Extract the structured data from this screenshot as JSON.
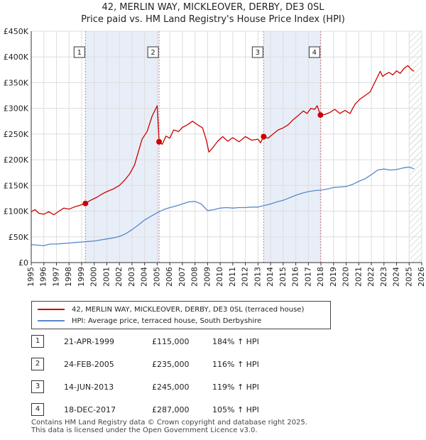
{
  "title_line1": "42, MERLIN WAY, MICKLEOVER, DERBY, DE3 0SL",
  "title_line2": "Price paid vs. HM Land Registry's House Price Index (HPI)",
  "legend": {
    "red_label": "42, MERLIN WAY, MICKLEOVER, DERBY, DE3 0SL (terraced house)",
    "blue_label": "HPI: Average price, terraced house, South Derbyshire"
  },
  "colors": {
    "red": "#cc0000",
    "blue": "#5588cc",
    "shade": "#e8eef8",
    "grid": "#dddddd",
    "vline": "#d08080"
  },
  "sales": [
    {
      "num": "1",
      "date": "21-APR-1999",
      "price": "£115,000",
      "hpi": "184% ↑ HPI"
    },
    {
      "num": "2",
      "date": "24-FEB-2005",
      "price": "£235,000",
      "hpi": "116% ↑ HPI"
    },
    {
      "num": "3",
      "date": "14-JUN-2013",
      "price": "£245,000",
      "hpi": "119% ↑ HPI"
    },
    {
      "num": "4",
      "date": "18-DEC-2017",
      "price": "£287,000",
      "hpi": "105% ↑ HPI"
    }
  ],
  "footer_line1": "Contains HM Land Registry data © Crown copyright and database right 2025.",
  "footer_line2": "This data is licensed under the Open Government Licence v3.0.",
  "chart_data": {
    "type": "line",
    "title": "Price paid vs. HM Land Registry's House Price Index (HPI)",
    "xlim": [
      1995,
      2026
    ],
    "ylim": [
      0,
      450000
    ],
    "x_ticks": [
      1995,
      1996,
      1997,
      1998,
      1999,
      2000,
      2001,
      2002,
      2003,
      2004,
      2005,
      2006,
      2007,
      2008,
      2009,
      2010,
      2011,
      2012,
      2013,
      2014,
      2015,
      2016,
      2017,
      2018,
      2019,
      2020,
      2021,
      2022,
      2023,
      2024,
      2025,
      2026
    ],
    "y_ticks": [
      {
        "value": 0,
        "label": "£0"
      },
      {
        "value": 50000,
        "label": "£50K"
      },
      {
        "value": 100000,
        "label": "£100K"
      },
      {
        "value": 150000,
        "label": "£150K"
      },
      {
        "value": 200000,
        "label": "£200K"
      },
      {
        "value": 250000,
        "label": "£250K"
      },
      {
        "value": 300000,
        "label": "£300K"
      },
      {
        "value": 350000,
        "label": "£350K"
      },
      {
        "value": 400000,
        "label": "£400K"
      },
      {
        "value": 450000,
        "label": "£450K"
      }
    ],
    "shaded_ranges": [
      [
        1999.3,
        2005.15
      ],
      [
        2013.45,
        2017.96
      ]
    ],
    "hatch_from": 2025.0,
    "markers": [
      {
        "num": "1",
        "x": 1999.3,
        "y": 115000
      },
      {
        "num": "2",
        "x": 2005.15,
        "y": 235000
      },
      {
        "num": "3",
        "x": 2013.45,
        "y": 245000
      },
      {
        "num": "4",
        "x": 2017.96,
        "y": 287000
      }
    ],
    "series": [
      {
        "name": "42, MERLIN WAY, MICKLEOVER, DERBY, DE3 0SL (terraced house)",
        "color": "#cc0000",
        "points": [
          [
            1995.0,
            99000
          ],
          [
            1995.3,
            103000
          ],
          [
            1995.6,
            96000
          ],
          [
            1996.0,
            94000
          ],
          [
            1996.4,
            99000
          ],
          [
            1996.8,
            93000
          ],
          [
            1997.2,
            100000
          ],
          [
            1997.6,
            106000
          ],
          [
            1998.0,
            104000
          ],
          [
            1998.4,
            108000
          ],
          [
            1998.8,
            111000
          ],
          [
            1999.3,
            115000
          ],
          [
            1999.7,
            121000
          ],
          [
            2000.2,
            127000
          ],
          [
            2000.6,
            133000
          ],
          [
            2001.0,
            138000
          ],
          [
            2001.5,
            143000
          ],
          [
            2002.0,
            150000
          ],
          [
            2002.4,
            160000
          ],
          [
            2002.8,
            172000
          ],
          [
            2003.2,
            190000
          ],
          [
            2003.5,
            215000
          ],
          [
            2003.8,
            240000
          ],
          [
            2004.2,
            255000
          ],
          [
            2004.6,
            285000
          ],
          [
            2004.9,
            300000
          ],
          [
            2005.0,
            305000
          ],
          [
            2005.1,
            260000
          ],
          [
            2005.15,
            235000
          ],
          [
            2005.4,
            230000
          ],
          [
            2005.7,
            246000
          ],
          [
            2006.0,
            242000
          ],
          [
            2006.3,
            258000
          ],
          [
            2006.7,
            255000
          ],
          [
            2007.0,
            263000
          ],
          [
            2007.4,
            268000
          ],
          [
            2007.8,
            275000
          ],
          [
            2008.2,
            268000
          ],
          [
            2008.6,
            262000
          ],
          [
            2008.9,
            238000
          ],
          [
            2009.1,
            215000
          ],
          [
            2009.4,
            223000
          ],
          [
            2009.8,
            236000
          ],
          [
            2010.2,
            245000
          ],
          [
            2010.6,
            236000
          ],
          [
            2011.0,
            243000
          ],
          [
            2011.5,
            235000
          ],
          [
            2012.0,
            245000
          ],
          [
            2012.5,
            238000
          ],
          [
            2013.0,
            240000
          ],
          [
            2013.2,
            233000
          ],
          [
            2013.45,
            245000
          ],
          [
            2013.8,
            242000
          ],
          [
            2014.2,
            250000
          ],
          [
            2014.6,
            258000
          ],
          [
            2015.0,
            262000
          ],
          [
            2015.4,
            268000
          ],
          [
            2015.8,
            278000
          ],
          [
            2016.2,
            286000
          ],
          [
            2016.6,
            295000
          ],
          [
            2016.9,
            290000
          ],
          [
            2017.2,
            300000
          ],
          [
            2017.5,
            298000
          ],
          [
            2017.7,
            305000
          ],
          [
            2017.96,
            287000
          ],
          [
            2018.3,
            288000
          ],
          [
            2018.7,
            292000
          ],
          [
            2019.1,
            298000
          ],
          [
            2019.5,
            290000
          ],
          [
            2019.9,
            296000
          ],
          [
            2020.3,
            290000
          ],
          [
            2020.7,
            308000
          ],
          [
            2021.1,
            318000
          ],
          [
            2021.5,
            325000
          ],
          [
            2021.9,
            332000
          ],
          [
            2022.3,
            352000
          ],
          [
            2022.7,
            372000
          ],
          [
            2022.9,
            362000
          ],
          [
            2023.1,
            366000
          ],
          [
            2023.4,
            370000
          ],
          [
            2023.7,
            365000
          ],
          [
            2024.0,
            373000
          ],
          [
            2024.3,
            368000
          ],
          [
            2024.6,
            378000
          ],
          [
            2024.9,
            383000
          ],
          [
            2025.2,
            375000
          ],
          [
            2025.4,
            372000
          ]
        ]
      },
      {
        "name": "HPI: Average price, terraced house, South Derbyshire",
        "color": "#5588cc",
        "points": [
          [
            1995.0,
            35000
          ],
          [
            1995.5,
            34000
          ],
          [
            1996.0,
            33000
          ],
          [
            1996.5,
            36000
          ],
          [
            1997.0,
            36000
          ],
          [
            1997.5,
            37000
          ],
          [
            1998.0,
            38000
          ],
          [
            1998.5,
            39000
          ],
          [
            1999.0,
            40000
          ],
          [
            1999.5,
            41000
          ],
          [
            2000.0,
            42000
          ],
          [
            2000.5,
            44000
          ],
          [
            2001.0,
            46000
          ],
          [
            2001.5,
            48000
          ],
          [
            2002.0,
            51000
          ],
          [
            2002.5,
            56000
          ],
          [
            2003.0,
            64000
          ],
          [
            2003.5,
            73000
          ],
          [
            2004.0,
            83000
          ],
          [
            2004.5,
            90000
          ],
          [
            2005.0,
            97000
          ],
          [
            2005.5,
            103000
          ],
          [
            2006.0,
            107000
          ],
          [
            2006.5,
            110000
          ],
          [
            2007.0,
            114000
          ],
          [
            2007.5,
            118000
          ],
          [
            2008.0,
            119000
          ],
          [
            2008.5,
            114000
          ],
          [
            2009.0,
            101000
          ],
          [
            2009.5,
            103000
          ],
          [
            2010.0,
            106000
          ],
          [
            2010.5,
            107000
          ],
          [
            2011.0,
            106000
          ],
          [
            2011.5,
            107000
          ],
          [
            2012.0,
            107000
          ],
          [
            2012.5,
            108000
          ],
          [
            2013.0,
            108000
          ],
          [
            2013.5,
            111000
          ],
          [
            2014.0,
            114000
          ],
          [
            2014.5,
            118000
          ],
          [
            2015.0,
            121000
          ],
          [
            2015.5,
            126000
          ],
          [
            2016.0,
            131000
          ],
          [
            2016.5,
            135000
          ],
          [
            2017.0,
            138000
          ],
          [
            2017.5,
            140000
          ],
          [
            2018.0,
            141000
          ],
          [
            2018.5,
            143000
          ],
          [
            2019.0,
            146000
          ],
          [
            2019.5,
            147000
          ],
          [
            2020.0,
            148000
          ],
          [
            2020.5,
            152000
          ],
          [
            2021.0,
            158000
          ],
          [
            2021.5,
            163000
          ],
          [
            2022.0,
            171000
          ],
          [
            2022.5,
            180000
          ],
          [
            2023.0,
            182000
          ],
          [
            2023.5,
            180000
          ],
          [
            2024.0,
            181000
          ],
          [
            2024.5,
            184000
          ],
          [
            2025.0,
            186000
          ],
          [
            2025.4,
            182000
          ]
        ]
      }
    ]
  }
}
